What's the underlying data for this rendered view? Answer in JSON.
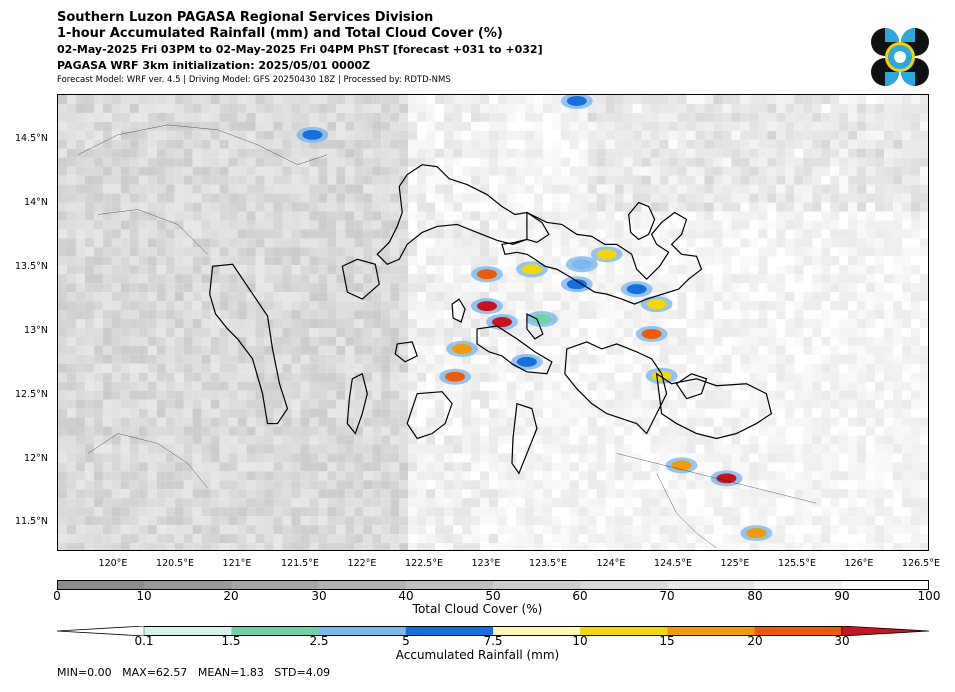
{
  "header": {
    "title": "Southern Luzon PAGASA Regional Services Division",
    "subtitle": "1-hour Accumulated Rainfall (mm) and Total Cloud Cover (%)",
    "period": "02-May-2025 Fri 03PM to 02-May-2025 Fri 04PM PhST [forecast +031 to +032]",
    "init": "PAGASA WRF 3km initialization: 2025/05/01 0000Z",
    "model_info": "Forecast Model: WRF ver. 4.5 | Driving Model: GFS 20250430 18Z | Processed by: RDTD-NMS"
  },
  "logo": {
    "icon": "pagasa-logo",
    "colors": [
      "#111111",
      "#29a9e0",
      "#f5d300"
    ]
  },
  "map": {
    "lat_labels": [
      "14.5°N",
      "14°N",
      "13.5°N",
      "13°N",
      "12.5°N",
      "12°N",
      "11.5°N"
    ],
    "lon_labels": [
      "120°E",
      "120.5°E",
      "121°E",
      "121.5°E",
      "122°E",
      "122.5°E",
      "123°E",
      "123.5°E",
      "124°E",
      "124.5°E",
      "125°E",
      "125.5°E",
      "126°E",
      "126.5°E"
    ],
    "lat_values": [
      14.5,
      14.0,
      13.5,
      13.0,
      12.5,
      12.0,
      11.5
    ],
    "lon_values": [
      120.0,
      120.5,
      121.0,
      121.5,
      122.0,
      122.5,
      123.0,
      123.5,
      124.0,
      124.5,
      125.0,
      125.5,
      126.0,
      126.5
    ],
    "extent": {
      "lon_min": 119.55,
      "lon_max": 126.55,
      "lat_min": 11.28,
      "lat_max": 14.85
    }
  },
  "cloud_colorbar": {
    "ticks": [
      "0",
      "10",
      "20",
      "30",
      "40",
      "50",
      "60",
      "70",
      "80",
      "90",
      "100"
    ],
    "colors": [
      "#8c8c8c",
      "#999999",
      "#a6a6a6",
      "#b3b3b3",
      "#bfbfbf",
      "#cccccc",
      "#d9d9d9",
      "#e6e6e6",
      "#f2f2f2",
      "#ffffff"
    ],
    "label": "Total Cloud Cover (%)"
  },
  "rain_colorbar": {
    "ticks": [
      "0.1",
      "1.5",
      "2.5",
      "5",
      "7.5",
      "10",
      "15",
      "20",
      "30"
    ],
    "colors": [
      "#ffffff",
      "#d6f5ea",
      "#6fd3a8",
      "#7ab8f0",
      "#1470e0",
      "#fff8b0",
      "#f5d800",
      "#f59a00",
      "#f05a00",
      "#c8141e"
    ],
    "label": "Accumulated Rainfall (mm)"
  },
  "stats": "MIN=0.00   MAX=62.57   MEAN=1.83   STD=4.09"
}
